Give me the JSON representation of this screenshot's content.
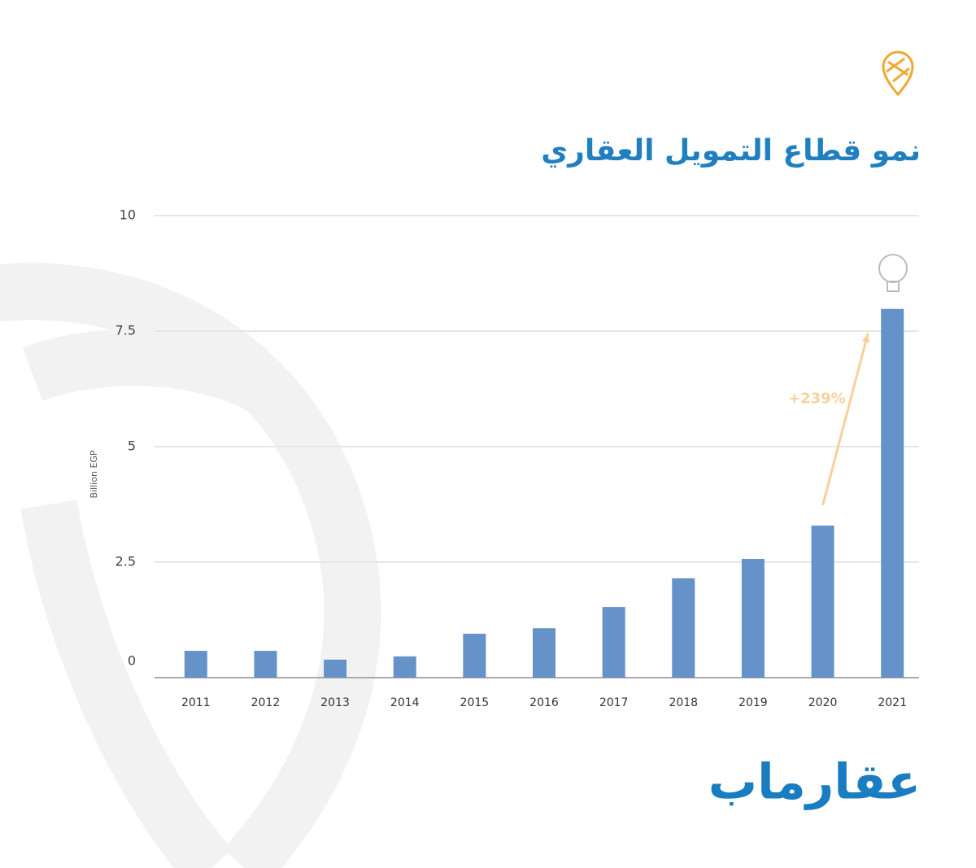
{
  "chart_data": {
    "type": "bar",
    "title": "نمو قطاع التمويل العقاري",
    "y_label": "Billion EGP",
    "annotation": "+239%",
    "brand": "عقارماب",
    "categories": [
      "2011",
      "2012",
      "2013",
      "2014",
      "2015",
      "2016",
      "2017",
      "2018",
      "2019",
      "2020",
      "2021"
    ],
    "values": [
      0.58,
      0.58,
      0.39,
      0.46,
      0.95,
      1.07,
      1.53,
      2.15,
      2.57,
      3.29,
      7.98
    ],
    "color": "#6592c9",
    "ylim": [
      0,
      10
    ],
    "yticks": [
      0,
      2.5,
      5,
      7.5,
      10
    ],
    "grid": true
  }
}
